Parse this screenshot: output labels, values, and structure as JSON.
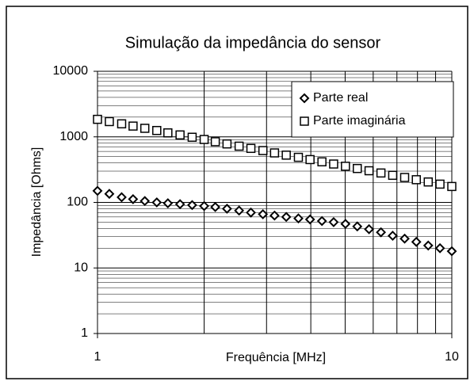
{
  "chart_data": {
    "type": "scatter",
    "title": "Simulação da impedância do sensor",
    "xlabel": "Frequência [MHz]",
    "ylabel": "Impedância [Ohms]",
    "xscale": "log",
    "yscale": "log",
    "xlim": [
      1,
      10
    ],
    "ylim": [
      1,
      10000
    ],
    "xticks": [
      1,
      10
    ],
    "yticks": [
      1,
      10,
      100,
      1000,
      10000
    ],
    "grid": true,
    "legend": "upper right",
    "x": [
      1,
      1.08,
      1.17,
      1.26,
      1.36,
      1.47,
      1.58,
      1.71,
      1.85,
      2.0,
      2.15,
      2.32,
      2.51,
      2.71,
      2.93,
      3.16,
      3.41,
      3.69,
      3.98,
      4.3,
      4.64,
      5.01,
      5.41,
      5.84,
      6.31,
      6.81,
      7.36,
      7.94,
      8.58,
      9.26,
      10
    ],
    "series": [
      {
        "name": "Parte real",
        "marker": "diamond",
        "color": "#000000",
        "values": [
          150,
          135,
          120,
          112,
          105,
          100,
          97,
          94,
          91,
          88,
          85,
          80,
          75,
          70,
          66,
          63,
          60,
          57,
          55,
          52,
          50,
          47,
          43,
          39,
          35,
          31,
          28,
          25,
          22,
          20,
          18
        ]
      },
      {
        "name": "Parte imaginária",
        "marker": "square",
        "color": "#000000",
        "values": [
          1850,
          1710,
          1580,
          1460,
          1350,
          1250,
          1150,
          1070,
          986,
          912,
          843,
          780,
          721,
          667,
          617,
          569,
          526,
          487,
          450,
          416,
          385,
          356,
          329,
          304,
          281,
          259,
          240,
          222,
          205,
          190,
          175
        ]
      }
    ]
  }
}
